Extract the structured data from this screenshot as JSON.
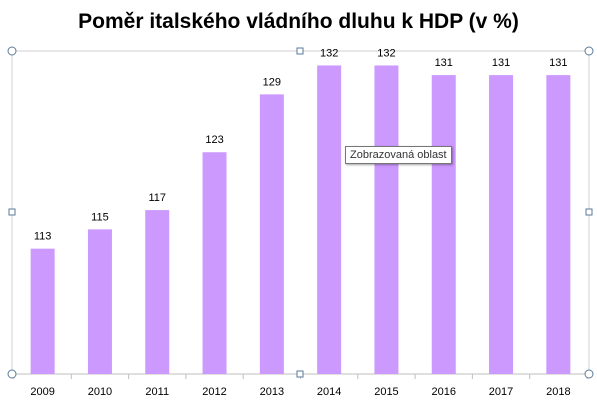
{
  "chart_data": {
    "type": "bar",
    "title": "Poměr italského vládního dluhu k HDP (v %)",
    "categories": [
      "2009",
      "2010",
      "2011",
      "2012",
      "2013",
      "2014",
      "2015",
      "2016",
      "2017",
      "2018"
    ],
    "values": [
      113,
      115,
      117,
      123,
      129,
      132,
      132,
      131,
      131,
      131
    ],
    "ylim": [
      100,
      133.5
    ],
    "grid": false,
    "legend": "none",
    "bar_color": "#cc99ff"
  },
  "tooltip": {
    "text": "Zobrazovaná oblast"
  },
  "colors": {
    "handle_border": "#5b7a99",
    "frame": "#d0d0d0",
    "axis": "#bfbfbf"
  }
}
